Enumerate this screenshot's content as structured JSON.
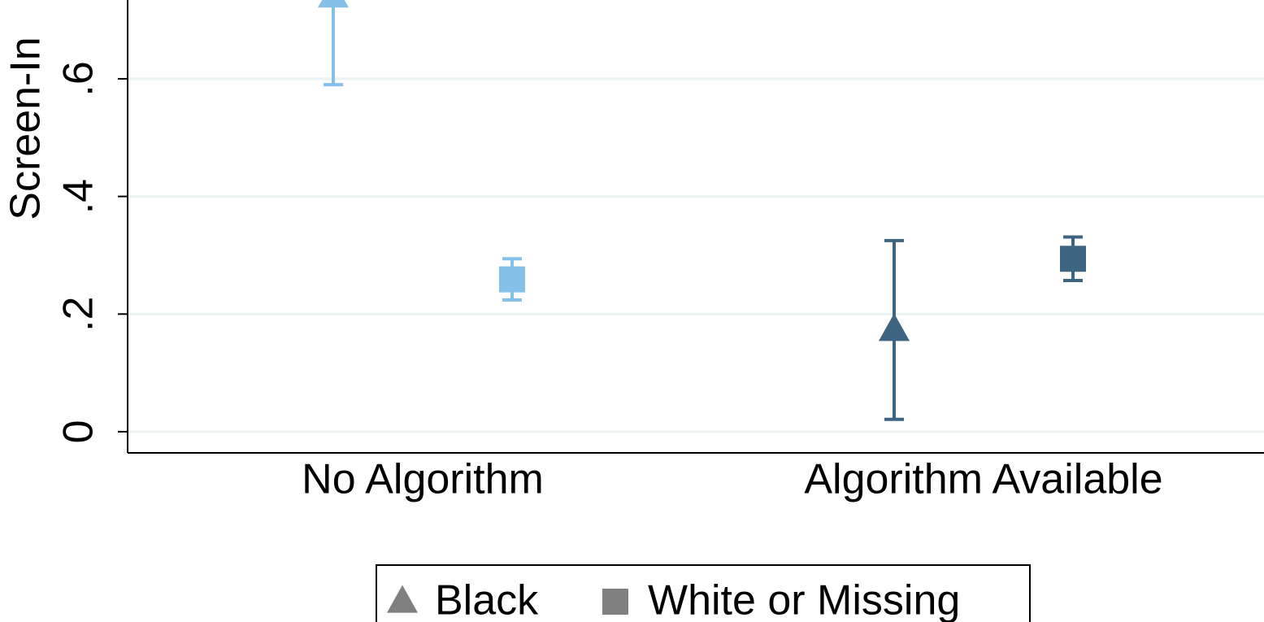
{
  "chart_data": {
    "type": "errorbar-dot",
    "ylabel": "Screen-In",
    "categories": [
      "No Algorithm",
      "Algorithm Available"
    ],
    "category_colors": [
      "#85c0e9",
      "#3d6480"
    ],
    "series": [
      {
        "name": "Black",
        "marker": "triangle",
        "color": "#808080",
        "values": [
          0.74,
          0.173
        ],
        "errors": [
          0.15,
          0.152
        ]
      },
      {
        "name": "White or Missing",
        "marker": "square",
        "color": "#808080",
        "values": [
          0.259,
          0.294
        ],
        "errors": [
          0.035,
          0.037
        ]
      }
    ],
    "ylim": [
      -0.036,
      0.734
    ],
    "yticks": [
      0,
      {
        "value": 0.2,
        "label": ".2"
      },
      {
        "value": 0.4,
        "label": ".4"
      },
      {
        "value": 0.6,
        "label": ".6"
      }
    ],
    "grid": true
  }
}
